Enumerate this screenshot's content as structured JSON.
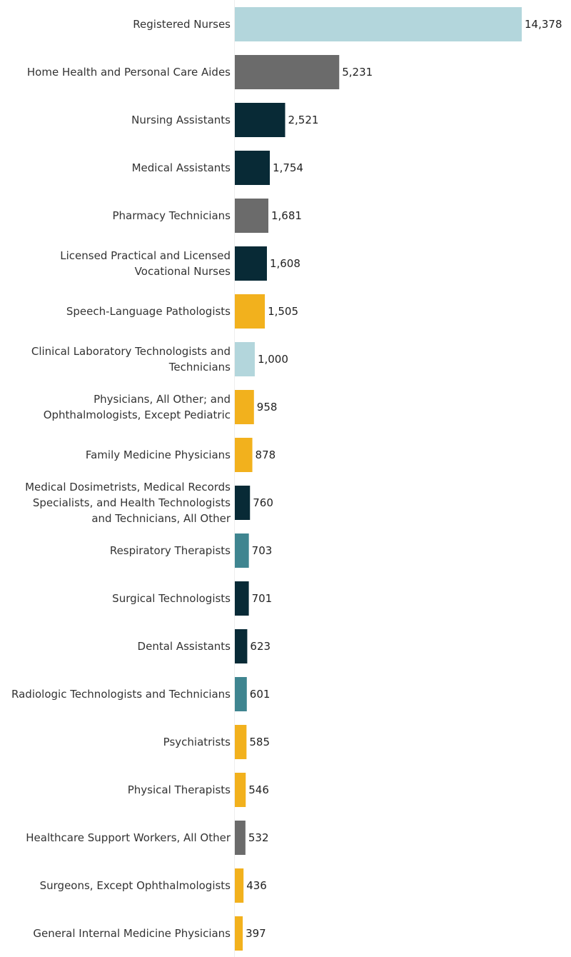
{
  "chart_data": {
    "type": "bar",
    "orientation": "horizontal",
    "grid": false,
    "legend": "none",
    "xlim": [
      0,
      14378
    ],
    "colors": {
      "light_blue": "#b3d6dc",
      "gray": "#6b6b6b",
      "dark_navy": "#082a36",
      "gold": "#f2b11d",
      "teal": "#3f8590"
    },
    "categories": [
      "Registered Nurses",
      "Home Health and Personal Care Aides",
      "Nursing Assistants",
      "Medical Assistants",
      "Pharmacy Technicians",
      "Licensed Practical and Licensed Vocational Nurses",
      "Speech-Language Pathologists",
      "Clinical Laboratory Technologists and Technicians",
      "Physicians, All Other; and Ophthalmologists, Except Pediatric",
      "Family Medicine Physicians",
      "Medical Dosimetrists, Medical Records Specialists, and Health Technologists and Technicians, All Other",
      "Respiratory Therapists",
      "Surgical Technologists",
      "Dental Assistants",
      "Radiologic Technologists and Technicians",
      "Psychiatrists",
      "Physical Therapists",
      "Healthcare Support Workers, All Other",
      "Surgeons, Except Ophthalmologists",
      "General Internal Medicine Physicians"
    ],
    "category_lines": [
      [
        "Registered Nurses"
      ],
      [
        "Home Health and Personal Care Aides"
      ],
      [
        "Nursing Assistants"
      ],
      [
        "Medical Assistants"
      ],
      [
        "Pharmacy Technicians"
      ],
      [
        "Licensed Practical and Licensed",
        "Vocational Nurses"
      ],
      [
        "Speech-Language Pathologists"
      ],
      [
        "Clinical Laboratory Technologists and",
        "Technicians"
      ],
      [
        "Physicians, All Other; and",
        "Ophthalmologists, Except Pediatric"
      ],
      [
        "Family Medicine Physicians"
      ],
      [
        "Medical Dosimetrists, Medical Records",
        "Specialists, and Health Technologists",
        "and Technicians, All Other"
      ],
      [
        "Respiratory Therapists"
      ],
      [
        "Surgical Technologists"
      ],
      [
        "Dental Assistants"
      ],
      [
        "Radiologic Technologists and Technicians"
      ],
      [
        "Psychiatrists"
      ],
      [
        "Physical Therapists"
      ],
      [
        "Healthcare Support Workers, All Other"
      ],
      [
        "Surgeons, Except Ophthalmologists"
      ],
      [
        "General Internal Medicine Physicians"
      ]
    ],
    "values": [
      14378,
      5231,
      2521,
      1754,
      1681,
      1608,
      1505,
      1000,
      958,
      878,
      760,
      703,
      701,
      623,
      601,
      585,
      546,
      532,
      436,
      397
    ],
    "value_labels": [
      "14,378",
      "5,231",
      "2,521",
      "1,754",
      "1,681",
      "1,608",
      "1,505",
      "1,000",
      "958",
      "878",
      "760",
      "703",
      "701",
      "623",
      "601",
      "585",
      "546",
      "532",
      "436",
      "397"
    ],
    "bar_colors": [
      "#b3d6dc",
      "#6b6b6b",
      "#082a36",
      "#082a36",
      "#6b6b6b",
      "#082a36",
      "#f2b11d",
      "#b3d6dc",
      "#f2b11d",
      "#f2b11d",
      "#082a36",
      "#3f8590",
      "#082a36",
      "#082a36",
      "#3f8590",
      "#f2b11d",
      "#f2b11d",
      "#6b6b6b",
      "#f2b11d",
      "#f2b11d"
    ]
  }
}
